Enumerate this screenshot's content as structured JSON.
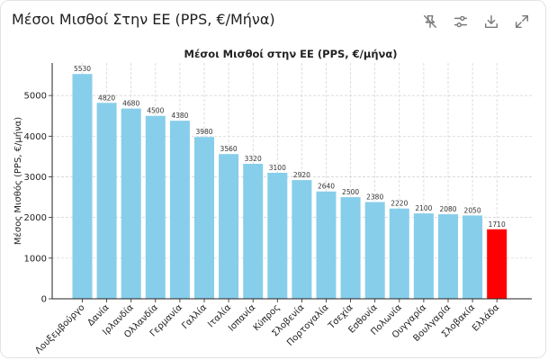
{
  "card": {
    "title": "Μέσοι Μισθοί Στην ΕΕ (PPS, €/Μήνα)",
    "toolbar": [
      {
        "name": "no-pin-icon",
        "label": ""
      },
      {
        "name": "settings-sliders-icon",
        "label": ""
      },
      {
        "name": "download-icon",
        "label": ""
      },
      {
        "name": "expand-icon",
        "label": ""
      }
    ]
  },
  "colors": {
    "bar": "#87ceeb",
    "highlight": "#ff0000",
    "grid": "#d0d0d0",
    "axis": "#222222"
  },
  "chart_data": {
    "type": "bar",
    "title": "Μέσοι Μισθοί στην ΕΕ (PPS, €/μήνα)",
    "xlabel": "",
    "ylabel": "Μέσος Μισθός (PPS, €/μήνα)",
    "ylim": [
      0,
      5800
    ],
    "yticks": [
      0,
      1000,
      2000,
      3000,
      4000,
      5000
    ],
    "grid": true,
    "categories": [
      "Λουξεμβούργο",
      "Δανία",
      "Ιρλανδία",
      "Ολλανδία",
      "Γερμανία",
      "Γαλλία",
      "Ιταλία",
      "Ισπανία",
      "Κύπρος",
      "Σλοβενία",
      "Πορτογαλία",
      "Τσεχία",
      "Εσθονία",
      "Πολωνία",
      "Ουγγαρία",
      "Βουλγαρία",
      "Σλοβακία",
      "Ελλάδα"
    ],
    "values": [
      5530,
      4820,
      4680,
      4500,
      4380,
      3980,
      3560,
      3320,
      3100,
      2920,
      2640,
      2500,
      2380,
      2220,
      2100,
      2080,
      2050,
      1710
    ],
    "highlighted_category": "Ελλάδα"
  }
}
